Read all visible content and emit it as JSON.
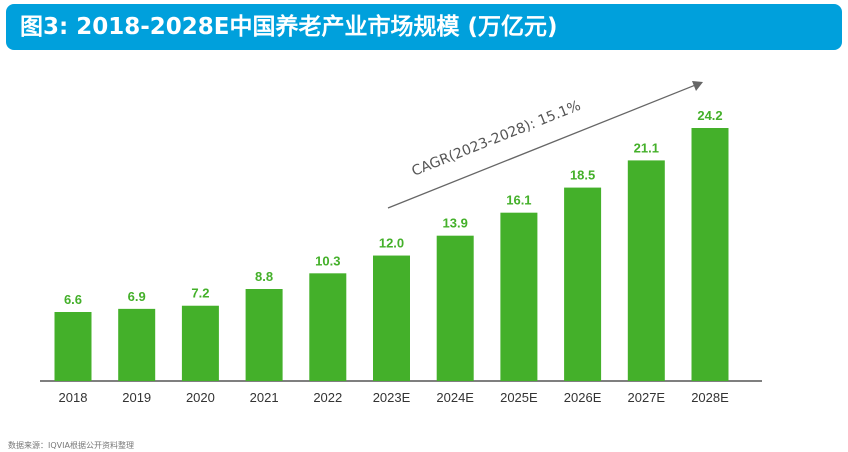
{
  "header": {
    "title": "图3: 2018-2028E中国养老产业市场规模 (万亿元)"
  },
  "colors": {
    "header_bg": "#00a0dc",
    "bar": "#44b02a",
    "label": "#44b02a",
    "arrow": "#666666",
    "axis": "#333333"
  },
  "chart_data": {
    "type": "bar",
    "title": "图3: 2018-2028E中国养老产业市场规模 (万亿元)",
    "categories": [
      "2018",
      "2019",
      "2020",
      "2021",
      "2022",
      "2023E",
      "2024E",
      "2025E",
      "2026E",
      "2027E",
      "2028E"
    ],
    "values": [
      6.6,
      6.9,
      7.2,
      8.8,
      10.3,
      12.0,
      13.9,
      16.1,
      18.5,
      21.1,
      24.2
    ],
    "value_labels": [
      "6.6",
      "6.9",
      "7.2",
      "8.8",
      "10.3",
      "12.0",
      "13.9",
      "16.1",
      "18.5",
      "21.1",
      "24.2"
    ],
    "xlabel": "",
    "ylabel": "",
    "ylim": [
      0,
      24.2
    ],
    "grid": false,
    "legend": "none",
    "annotation": "CAGR(2023-2028): 15.1%"
  },
  "footer": {
    "source": "数据来源：IQVIA根据公开资料整理"
  }
}
